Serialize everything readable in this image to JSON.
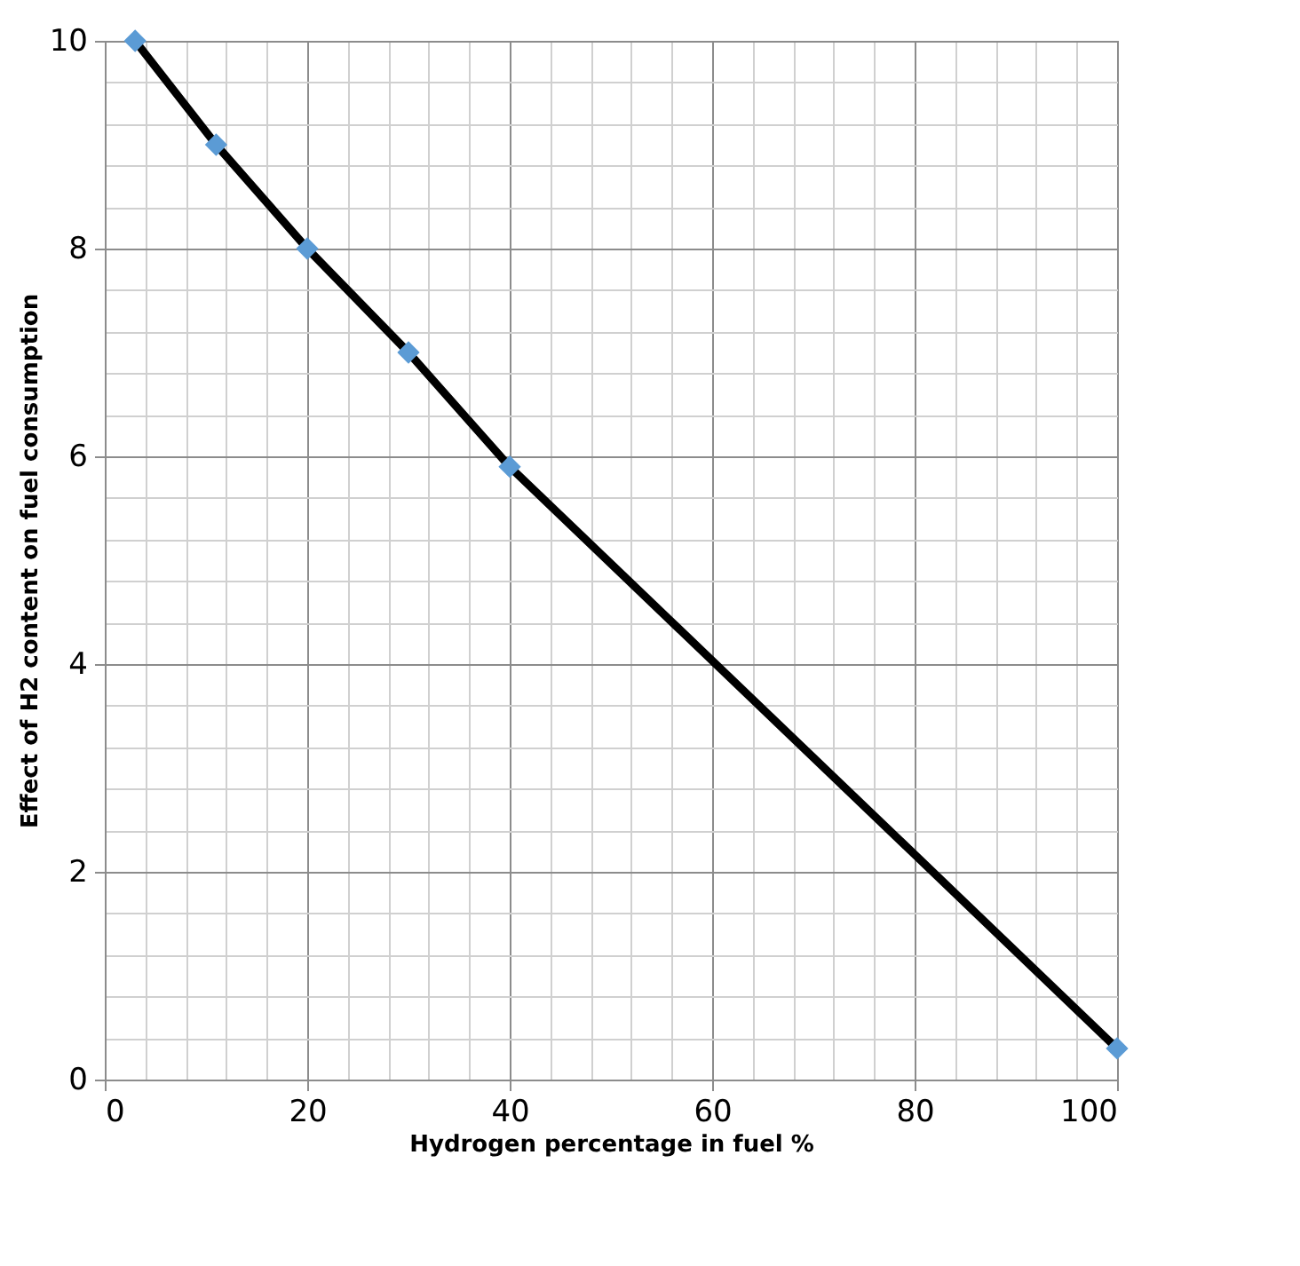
{
  "chart_data": {
    "type": "line",
    "xlabel": "Hydrogen percentage in fuel %",
    "ylabel": "Effect of H2 content on fuel consumption",
    "x": [
      3,
      11,
      20,
      30,
      40,
      100
    ],
    "series": [
      {
        "color": "#000000",
        "marker": "none",
        "values": [
          10,
          9,
          8,
          7,
          5.9,
          0.3
        ]
      },
      {
        "type": "scatter",
        "color": "#5b9bd5",
        "marker": "diamond",
        "values": [
          10,
          9,
          8,
          7,
          5.9,
          0.3
        ]
      }
    ],
    "xlim": [
      0,
      100
    ],
    "xticks": [
      0,
      {
        "value": 4,
        "label": null
      },
      {
        "value": 8,
        "label": null
      },
      {
        "value": 12,
        "label": null
      },
      {
        "value": 16,
        "label": null
      },
      20,
      {
        "value": 24,
        "label": null
      },
      {
        "value": 28,
        "label": null
      },
      {
        "value": 32,
        "label": null
      },
      {
        "value": 36,
        "label": null
      },
      40,
      {
        "value": 44,
        "label": null
      },
      {
        "value": 48,
        "label": null
      },
      {
        "value": 52,
        "label": null
      },
      {
        "value": 56,
        "label": null
      },
      60,
      {
        "value": 64,
        "label": null
      },
      {
        "value": 68,
        "label": null
      },
      {
        "value": 72,
        "label": null
      },
      {
        "value": 76,
        "label": null
      },
      80,
      {
        "value": 84,
        "label": null
      },
      {
        "value": 88,
        "label": null
      },
      {
        "value": 92,
        "label": null
      },
      {
        "value": 96,
        "label": null
      },
      100
    ],
    "ylim": [
      0,
      10
    ],
    "yticks": [
      0,
      {
        "value": 0.4,
        "label": null
      },
      {
        "value": 0.8,
        "label": null
      },
      {
        "value": 1.2,
        "label": null
      },
      {
        "value": 1.6,
        "label": null
      },
      2,
      {
        "value": 2.4,
        "label": null
      },
      {
        "value": 2.8,
        "label": null
      },
      {
        "value": 3.2,
        "label": null
      },
      {
        "value": 3.6,
        "label": null
      },
      4,
      {
        "value": 4.4,
        "label": null
      },
      {
        "value": 4.8,
        "label": null
      },
      {
        "value": 5.2,
        "label": null
      },
      {
        "value": 5.6,
        "label": null
      },
      6,
      {
        "value": 6.4,
        "label": null
      },
      {
        "value": 6.8,
        "label": null
      },
      {
        "value": 7.2,
        "label": null
      },
      {
        "value": 7.6,
        "label": null
      },
      8,
      {
        "value": 8.4,
        "label": null
      },
      {
        "value": 8.8,
        "label": null
      },
      {
        "value": 9.2,
        "label": null
      },
      {
        "value": 9.6,
        "label": null
      },
      10
    ],
    "grid": true
  }
}
